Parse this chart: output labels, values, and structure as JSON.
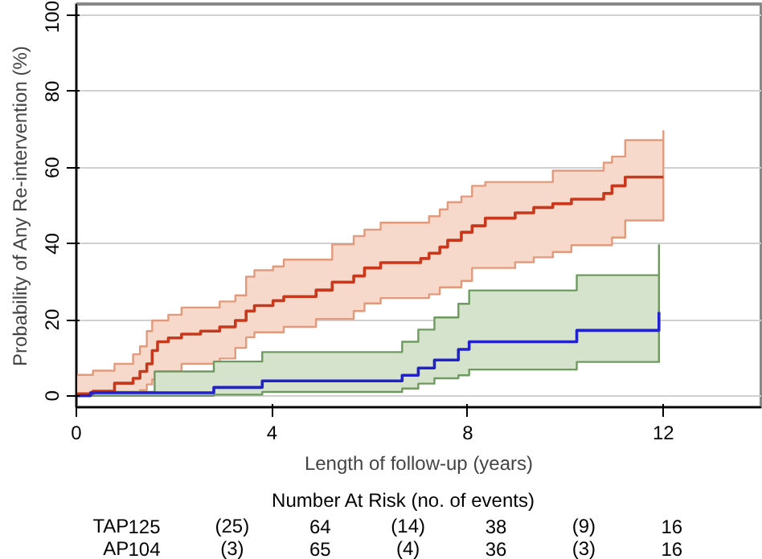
{
  "chart_data": {
    "type": "step",
    "xlabel": "Length of follow-up (years)",
    "ylabel": "Probability of Any Re-intervention (%)",
    "xlim": [
      0,
      14
    ],
    "ylim": [
      -3,
      103
    ],
    "xticks": [
      0,
      4,
      8,
      12
    ],
    "yticks": [
      0,
      20,
      40,
      60,
      80,
      100
    ],
    "grid": "y",
    "marker": "none",
    "line_style": "solid",
    "series": [
      {
        "color": "#c8381c",
        "x": [
          0,
          0.34,
          0.78,
          1.16,
          1.3,
          1.44,
          1.55,
          1.66,
          1.88,
          2.15,
          2.54,
          2.93,
          3.25,
          3.47,
          3.64,
          4.02,
          4.24,
          4.9,
          5.23,
          5.67,
          5.89,
          6.22,
          7.04,
          7.21,
          7.43,
          7.59,
          7.87,
          8.09,
          8.36,
          8.97,
          9.35,
          9.74,
          10.12,
          10.78,
          10.95,
          11.22,
          12
        ],
        "values": [
          0.5,
          1.2,
          3.3,
          4.6,
          6.4,
          8.4,
          11.9,
          14.2,
          15.2,
          16.2,
          17,
          18.1,
          19.8,
          22.3,
          23.7,
          25,
          26.1,
          27.8,
          29.9,
          31.5,
          33.6,
          35,
          36.1,
          37.5,
          39.1,
          40.9,
          43,
          44.7,
          46.7,
          48.1,
          49.5,
          50.5,
          51.7,
          53.2,
          55.2,
          57.5,
          57.5
        ],
        "upper": [
          5.5,
          6.6,
          8.4,
          10.9,
          13,
          17,
          19.8,
          19.8,
          21.3,
          23.2,
          23.2,
          24.8,
          26.4,
          31.3,
          33,
          34,
          35.8,
          35.8,
          39.8,
          42,
          43.7,
          45.5,
          45.5,
          47.2,
          49,
          50.9,
          52.4,
          55.2,
          56.2,
          56.2,
          56.2,
          59.2,
          59.2,
          61.3,
          62.9,
          67.2,
          69.6
        ],
        "lower": [
          0,
          0,
          0,
          0,
          1.5,
          3,
          4.3,
          6.4,
          6.4,
          8.4,
          8.4,
          9.8,
          12.6,
          15.4,
          16.7,
          16.7,
          18.1,
          20.2,
          20.2,
          22.3,
          24.3,
          25.7,
          25.7,
          26.7,
          28.5,
          28.5,
          30.2,
          33.6,
          33.6,
          35.1,
          36.4,
          37.8,
          39.6,
          39.6,
          41.6,
          46.1,
          46.1
        ]
      },
      {
        "color": "#2222cc",
        "x": [
          0,
          0.29,
          1.6,
          2.81,
          3.8,
          6.66,
          6.99,
          7.32,
          7.81,
          8.03,
          10.23,
          11.91
        ],
        "values": [
          0,
          0.8,
          0.8,
          2.2,
          3.9,
          5.4,
          7.3,
          9.4,
          12.2,
          14.2,
          17.2,
          22
        ],
        "upper": [
          0,
          1,
          6.4,
          9,
          11.5,
          14.2,
          17.4,
          20.6,
          24.2,
          27.7,
          31.7,
          39.6
        ],
        "lower": [
          0,
          0,
          0,
          0.3,
          1,
          1.9,
          3.2,
          4.6,
          5.4,
          6.9,
          8.9,
          11.6
        ]
      }
    ],
    "annotations": [
      "Number At Risk (no. of events)",
      "TAP",
      "125",
      "(25)",
      "64",
      "(14)",
      "38",
      "(9)",
      "16",
      "AP",
      "104",
      "(3)",
      "65",
      "(4)",
      "36",
      "(3)",
      "16"
    ]
  }
}
